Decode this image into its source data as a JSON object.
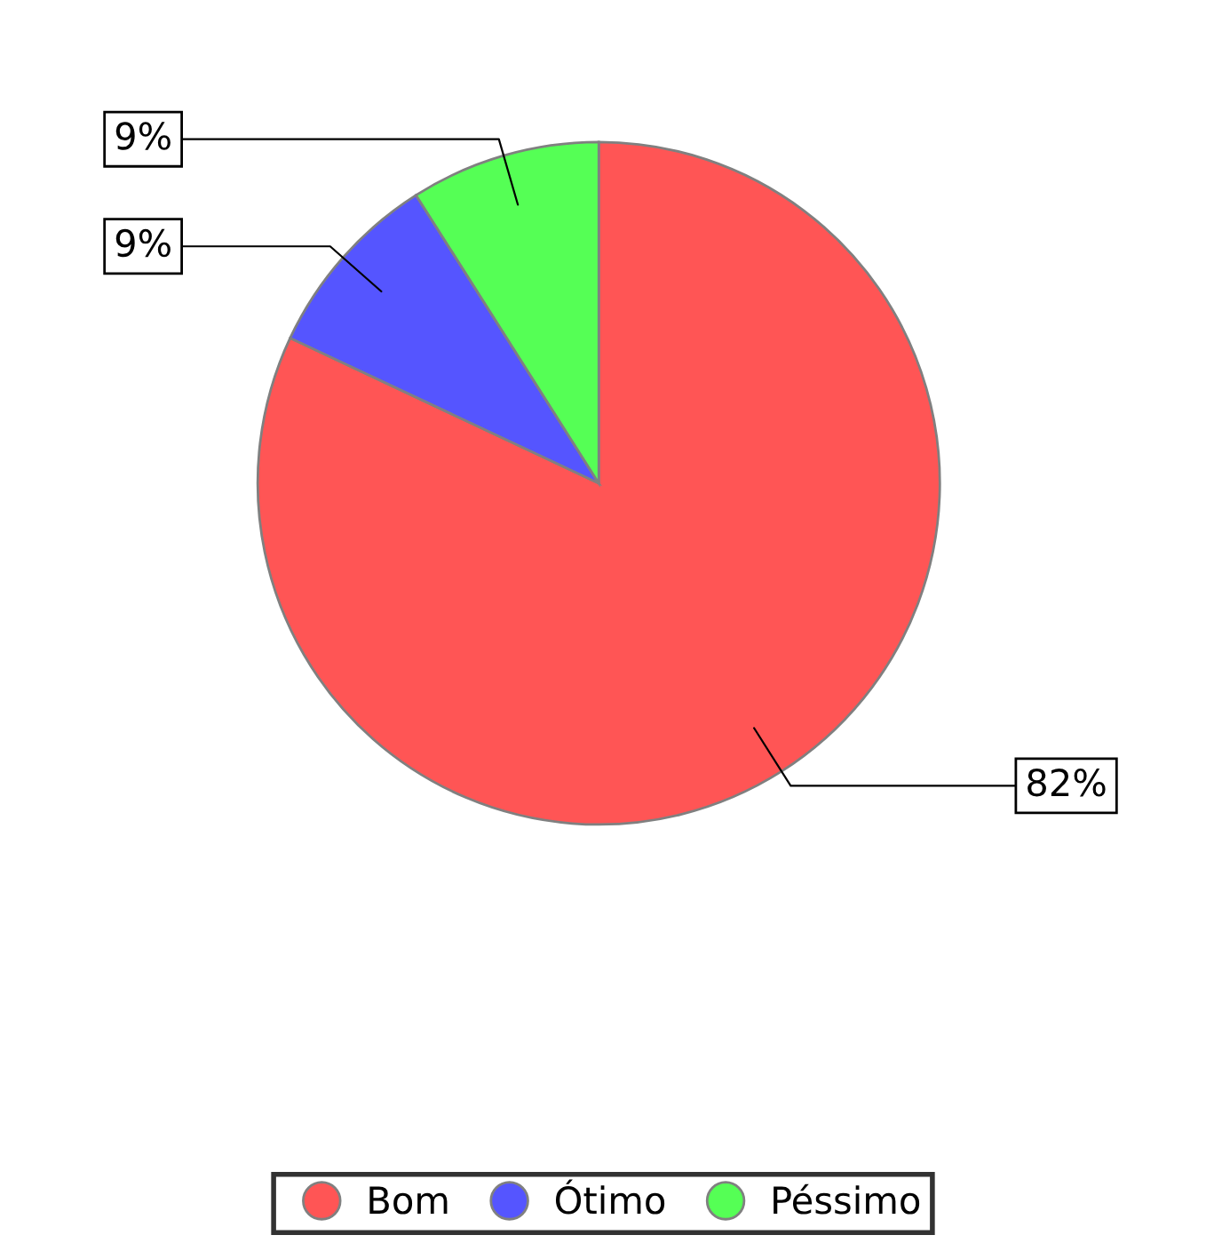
{
  "chart_data": {
    "type": "pie",
    "categories": [
      "Bom",
      "Ótimo",
      "Péssimo"
    ],
    "values": [
      82,
      9,
      9
    ],
    "colors": [
      "#ff5555",
      "#5555ff",
      "#55ff55"
    ],
    "value_labels": [
      "82%",
      "9%",
      "9%"
    ],
    "legend": "bottom"
  }
}
